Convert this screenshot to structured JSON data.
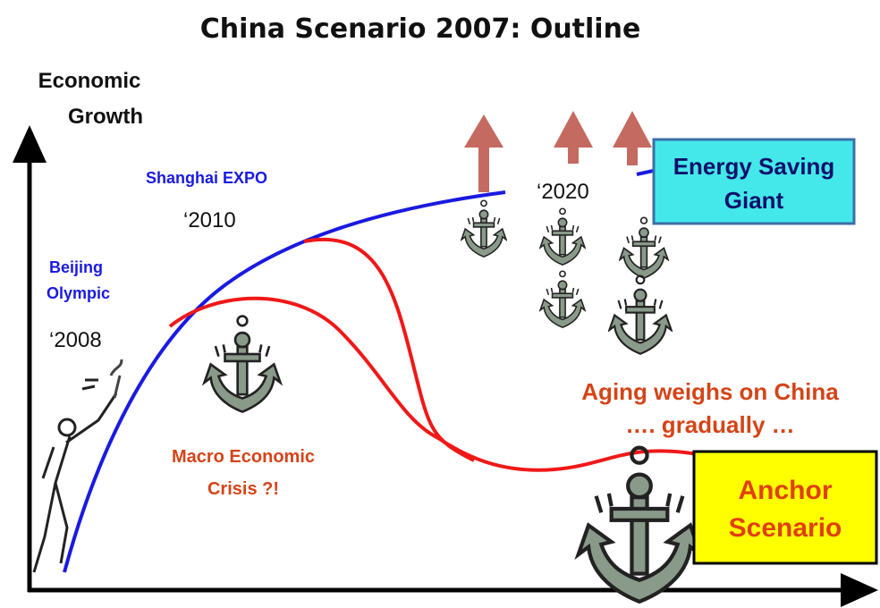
{
  "header": {
    "title": "China Scenario 2007: Outline"
  },
  "axis": {
    "y_label": [
      "Economic",
      "Growth"
    ]
  },
  "milestones": [
    {
      "label": [
        "Beijing",
        "Olympic"
      ],
      "year": "‘2008"
    },
    {
      "label": [
        "Shanghai EXPO"
      ],
      "year": "‘2010"
    },
    {
      "year": "‘2020"
    }
  ],
  "scenarios": [
    {
      "label": [
        "Energy Saving",
        "Giant"
      ]
    },
    {
      "label": [
        "Macro Economic",
        "Crisis ?!"
      ]
    },
    {
      "label": [
        "Aging weighs on China",
        "…. gradually …"
      ]
    },
    {
      "label": [
        "Anchor",
        "Scenario"
      ]
    }
  ]
}
